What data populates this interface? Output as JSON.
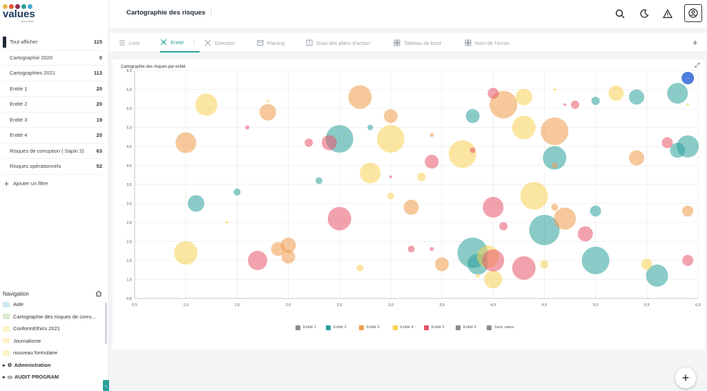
{
  "brand": {
    "name": "values",
    "subtitle": "associates",
    "dot_colors": [
      "#e9b949",
      "#e4572e",
      "#8f2d56",
      "#2aa19a",
      "#4aa8d8"
    ]
  },
  "sidebar": {
    "filters": [
      {
        "label": "Tout afficher",
        "count": "115",
        "active": true
      },
      {
        "label": "Cartographie 2020",
        "count": "0"
      },
      {
        "label": "Cartographies 2021",
        "count": "113"
      },
      {
        "label": "Entité 1",
        "count": "20"
      },
      {
        "label": "Entité 2",
        "count": "20"
      },
      {
        "label": "Entité 3",
        "count": "19"
      },
      {
        "label": "Entité 4",
        "count": "20"
      },
      {
        "label": "Risques de corruption ( Sapin 2)",
        "count": "63"
      },
      {
        "label": "Risques opérationnels",
        "count": "52"
      }
    ],
    "add_filter_label": "Ajouter un filtre",
    "navigation_title": "Navigation",
    "nav_items": [
      {
        "label": "Aide",
        "color": "#cfe8f3"
      },
      {
        "label": "Cartographie des risques de corru...",
        "color": "#d9ead3"
      },
      {
        "label": "ConformEthics 2021",
        "color": "#fdf2c7"
      },
      {
        "label": "Journalisme",
        "color": "#fdf2c7"
      },
      {
        "label": "nouveau formulaire",
        "color": "#fdf2c7"
      }
    ],
    "nav_groups": [
      {
        "label": "Administration"
      },
      {
        "label": "AUDIT PROGRAM"
      }
    ]
  },
  "header": {
    "title": "Cartographie des risques"
  },
  "tabs": [
    {
      "label": "Liste",
      "active": false
    },
    {
      "label": "Entité",
      "active": true
    },
    {
      "label": "Direction",
      "active": false
    },
    {
      "label": "Planing",
      "active": false
    },
    {
      "label": "Suivi des plans d'action",
      "active": false
    },
    {
      "label": "Tableau de bord",
      "active": false
    },
    {
      "label": "Nom de l'écran",
      "active": false
    }
  ],
  "chart_data": {
    "type": "bubble",
    "title": "Cartographie des risques par entité",
    "xlim": [
      0.5,
      6.0
    ],
    "ylim": [
      0.5,
      6.5
    ],
    "x_ticks": [
      "0,5",
      "1,0",
      "1,5",
      "2,0",
      "2,5",
      "3,0",
      "3,5",
      "4,0",
      "4,5",
      "5,0",
      "5,5",
      "6,0"
    ],
    "y_ticks": [
      "0,5",
      "1,0",
      "1,5",
      "2,0",
      "2,5",
      "3,0",
      "3,5",
      "4,0",
      "4,5",
      "5,0",
      "5,5",
      "6,0",
      "6,5"
    ],
    "grid": true,
    "legend_position": "bottom",
    "series": [
      {
        "name": "Entité 1",
        "color": "#8c8c8c",
        "points": []
      },
      {
        "name": "Entité 2",
        "color": "#2aa19a",
        "points": [
          [
            1.1,
            3.0,
            12
          ],
          [
            1.5,
            3.3,
            5
          ],
          [
            2.3,
            3.6,
            5
          ],
          [
            2.5,
            4.7,
            20
          ],
          [
            2.8,
            5.0,
            4
          ],
          [
            3.8,
            5.3,
            10
          ],
          [
            3.8,
            1.7,
            22
          ],
          [
            3.85,
            1.4,
            15
          ],
          [
            4.6,
            4.2,
            17
          ],
          [
            4.5,
            2.3,
            22
          ],
          [
            5.0,
            5.7,
            6
          ],
          [
            5.0,
            2.8,
            8
          ],
          [
            5.0,
            1.5,
            20
          ],
          [
            5.4,
            5.8,
            11
          ],
          [
            5.6,
            1.1,
            16
          ],
          [
            5.8,
            5.9,
            15
          ],
          [
            5.8,
            4.4,
            11
          ],
          [
            5.9,
            4.5,
            16
          ]
        ]
      },
      {
        "name": "Entité 3",
        "color": "#ef9a4a",
        "points": [
          [
            1.0,
            4.6,
            15
          ],
          [
            1.8,
            5.4,
            12
          ],
          [
            1.9,
            1.8,
            10
          ],
          [
            2.0,
            1.9,
            11
          ],
          [
            2.0,
            1.6,
            10
          ],
          [
            2.7,
            5.8,
            17
          ],
          [
            3.0,
            5.3,
            10
          ],
          [
            3.2,
            2.9,
            11
          ],
          [
            3.4,
            4.8,
            3
          ],
          [
            3.5,
            1.4,
            10
          ],
          [
            4.1,
            5.6,
            20
          ],
          [
            4.6,
            4.9,
            20
          ],
          [
            4.6,
            2.9,
            5
          ],
          [
            4.6,
            4.0,
            4
          ],
          [
            4.7,
            2.6,
            16
          ],
          [
            5.4,
            4.2,
            11
          ],
          [
            5.9,
            2.8,
            8
          ]
        ]
      },
      {
        "name": "Entité 4",
        "color": "#f7d154",
        "points": [
          [
            1.0,
            1.7,
            17
          ],
          [
            1.2,
            5.6,
            16
          ],
          [
            1.4,
            2.5,
            2
          ],
          [
            1.8,
            5.7,
            2
          ],
          [
            2.7,
            1.3,
            5
          ],
          [
            2.8,
            3.8,
            15
          ],
          [
            3.0,
            4.7,
            20
          ],
          [
            3.0,
            3.2,
            5
          ],
          [
            3.3,
            3.7,
            6
          ],
          [
            3.7,
            4.3,
            20
          ],
          [
            3.95,
            1.6,
            16
          ],
          [
            4.0,
            1.0,
            13
          ],
          [
            3.85,
            1.1,
            3
          ],
          [
            4.3,
            5.8,
            12
          ],
          [
            4.3,
            5.0,
            17
          ],
          [
            4.4,
            3.2,
            20
          ],
          [
            4.5,
            1.4,
            6
          ],
          [
            4.6,
            6.0,
            2
          ],
          [
            5.2,
            5.9,
            11
          ],
          [
            5.5,
            1.4,
            8
          ],
          [
            5.9,
            5.6,
            2
          ]
        ]
      },
      {
        "name": "Entité 5",
        "color": "#e8566a",
        "points": [
          [
            1.6,
            5.0,
            3
          ],
          [
            1.7,
            1.5,
            14
          ],
          [
            2.2,
            4.6,
            6
          ],
          [
            2.4,
            4.6,
            11
          ],
          [
            2.5,
            2.6,
            17
          ],
          [
            3.0,
            3.7,
            2
          ],
          [
            3.2,
            1.8,
            5
          ],
          [
            3.4,
            1.8,
            3
          ],
          [
            3.4,
            4.1,
            10
          ],
          [
            3.8,
            4.4,
            4
          ],
          [
            4.0,
            5.9,
            8
          ],
          [
            4.0,
            2.9,
            15
          ],
          [
            4.0,
            1.5,
            16
          ],
          [
            4.1,
            2.4,
            6
          ],
          [
            4.3,
            1.3,
            17
          ],
          [
            4.7,
            5.6,
            2
          ],
          [
            4.8,
            5.6,
            6
          ],
          [
            4.9,
            2.2,
            11
          ],
          [
            5.7,
            4.6,
            8
          ],
          [
            5.9,
            1.5,
            8
          ]
        ]
      },
      {
        "name": "Entité 6",
        "color": "#8c8c8c",
        "points": []
      },
      {
        "name": "Sans valeur",
        "color": "#8c8c8c",
        "points": []
      },
      {
        "name": "",
        "color": "#3b6fd8",
        "points": [
          [
            5.9,
            6.3,
            9
          ]
        ]
      }
    ]
  },
  "icons": {
    "search": "search-icon",
    "theme": "moon-icon",
    "alert": "warning-icon",
    "user": "user-icon"
  }
}
